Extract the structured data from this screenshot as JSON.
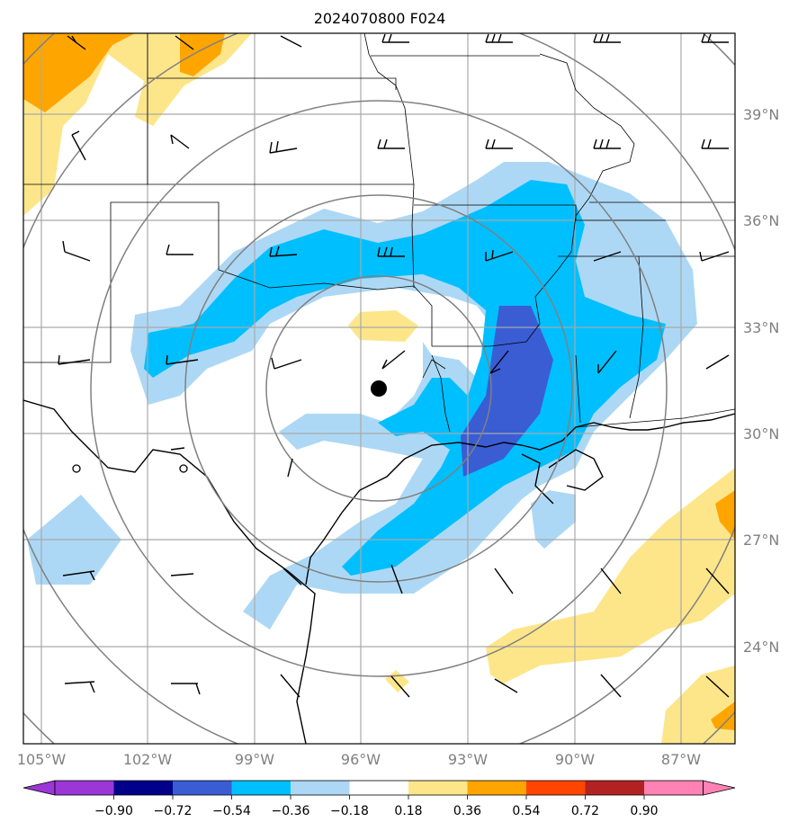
{
  "title": "2024070800 F024",
  "map": {
    "lon_labels": [
      "105°W",
      "102°W",
      "99°W",
      "96°W",
      "93°W",
      "90°W",
      "87°W"
    ],
    "lat_labels": [
      "39°N",
      "36°N",
      "33°N",
      "30°N",
      "27°N",
      "24°N"
    ],
    "center_marker": {
      "lon": -95.5,
      "lat": 31.3
    },
    "range_rings": 5
  },
  "colorbar": {
    "levels": [
      "−0.90",
      "−0.72",
      "−0.54",
      "−0.36",
      "−0.18",
      "0.18",
      "0.36",
      "0.54",
      "0.72",
      "0.90"
    ],
    "colors": [
      "#9a37d6",
      "#00008b",
      "#3a5dd4",
      "#00bfff",
      "#add8f5",
      "#ffffff",
      "#fde68a",
      "#ffa500",
      "#ff4500",
      "#b22222",
      "#ff82b4"
    ]
  }
}
